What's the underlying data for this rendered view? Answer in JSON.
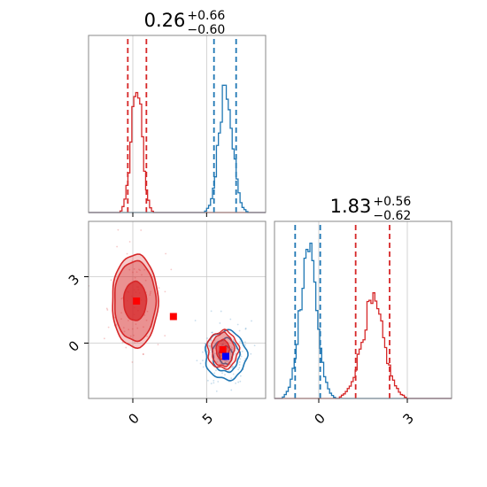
{
  "colors": {
    "red": "#d62728",
    "blue": "#1f77b4",
    "grid": "#c8c8c8",
    "axis": "#888888",
    "marker_red": "#ff0000",
    "marker_blue": "#0000ff"
  },
  "chart_data": [
    {
      "type": "histogram",
      "panel": "top-left",
      "title": {
        "value": "0.26",
        "plus": "+0.66",
        "minus": "−0.60"
      },
      "xlim": [
        -3,
        9
      ],
      "ylim": [
        0,
        1
      ],
      "xticks": [
        0,
        5
      ],
      "grid": true,
      "series": [
        {
          "color": "red",
          "mean": 0.26,
          "sigma": 0.36,
          "peak": 0.72,
          "quantiles": [
            -0.34,
            0.92
          ]
        },
        {
          "color": "blue",
          "mean": 6.3,
          "sigma": 0.45,
          "peak": 0.74,
          "quantiles": [
            5.5,
            7.0
          ]
        }
      ]
    },
    {
      "type": "histogram",
      "panel": "bottom-right",
      "title": {
        "value": "1.83",
        "plus": "+0.56",
        "minus": "−0.62"
      },
      "xlim": [
        -1.5,
        4.5
      ],
      "ylim": [
        0,
        1
      ],
      "xticks": [
        0,
        3
      ],
      "xticklabels": [
        "0",
        "3"
      ],
      "grid": true,
      "series": [
        {
          "color": "blue",
          "mean": -0.35,
          "sigma": 0.28,
          "peak": 0.86,
          "quantiles": [
            -0.8,
            0.05
          ]
        },
        {
          "color": "red",
          "mean": 1.83,
          "sigma": 0.38,
          "peak": 0.52,
          "quantiles": [
            1.25,
            2.4
          ]
        }
      ]
    },
    {
      "type": "contour",
      "panel": "bottom-left",
      "xlim": [
        -3,
        9
      ],
      "ylim": [
        -2.5,
        5.5
      ],
      "xticks": [
        0,
        5
      ],
      "yticks": [
        0,
        3
      ],
      "xticklabels": [
        "0",
        "5"
      ],
      "yticklabels": [
        "0",
        "3"
      ],
      "grid": true,
      "red_cluster_1": {
        "cx": 0.15,
        "cy": 1.9,
        "rx": [
          1.1,
          1.4,
          1.55
        ],
        "ry": [
          1.3,
          1.8,
          2.1
        ]
      },
      "red_cluster_2": {
        "cx": 6.1,
        "cy": -0.3,
        "rx": [
          0.45,
          0.75,
          1.05
        ],
        "ry": [
          0.45,
          0.75,
          0.85
        ]
      },
      "blue_cluster": {
        "cx": 6.3,
        "cy": -0.55,
        "rx": [
          0.45,
          0.9,
          1.4
        ],
        "ry": [
          0.4,
          0.75,
          1.1
        ]
      },
      "markers": [
        {
          "color": "marker_red",
          "x": 0.25,
          "y": 1.9
        },
        {
          "color": "marker_red",
          "x": 2.75,
          "y": 1.2
        },
        {
          "color": "marker_red",
          "x": 6.1,
          "y": -0.3
        },
        {
          "color": "marker_blue",
          "x": 6.3,
          "y": -0.6
        }
      ]
    }
  ]
}
